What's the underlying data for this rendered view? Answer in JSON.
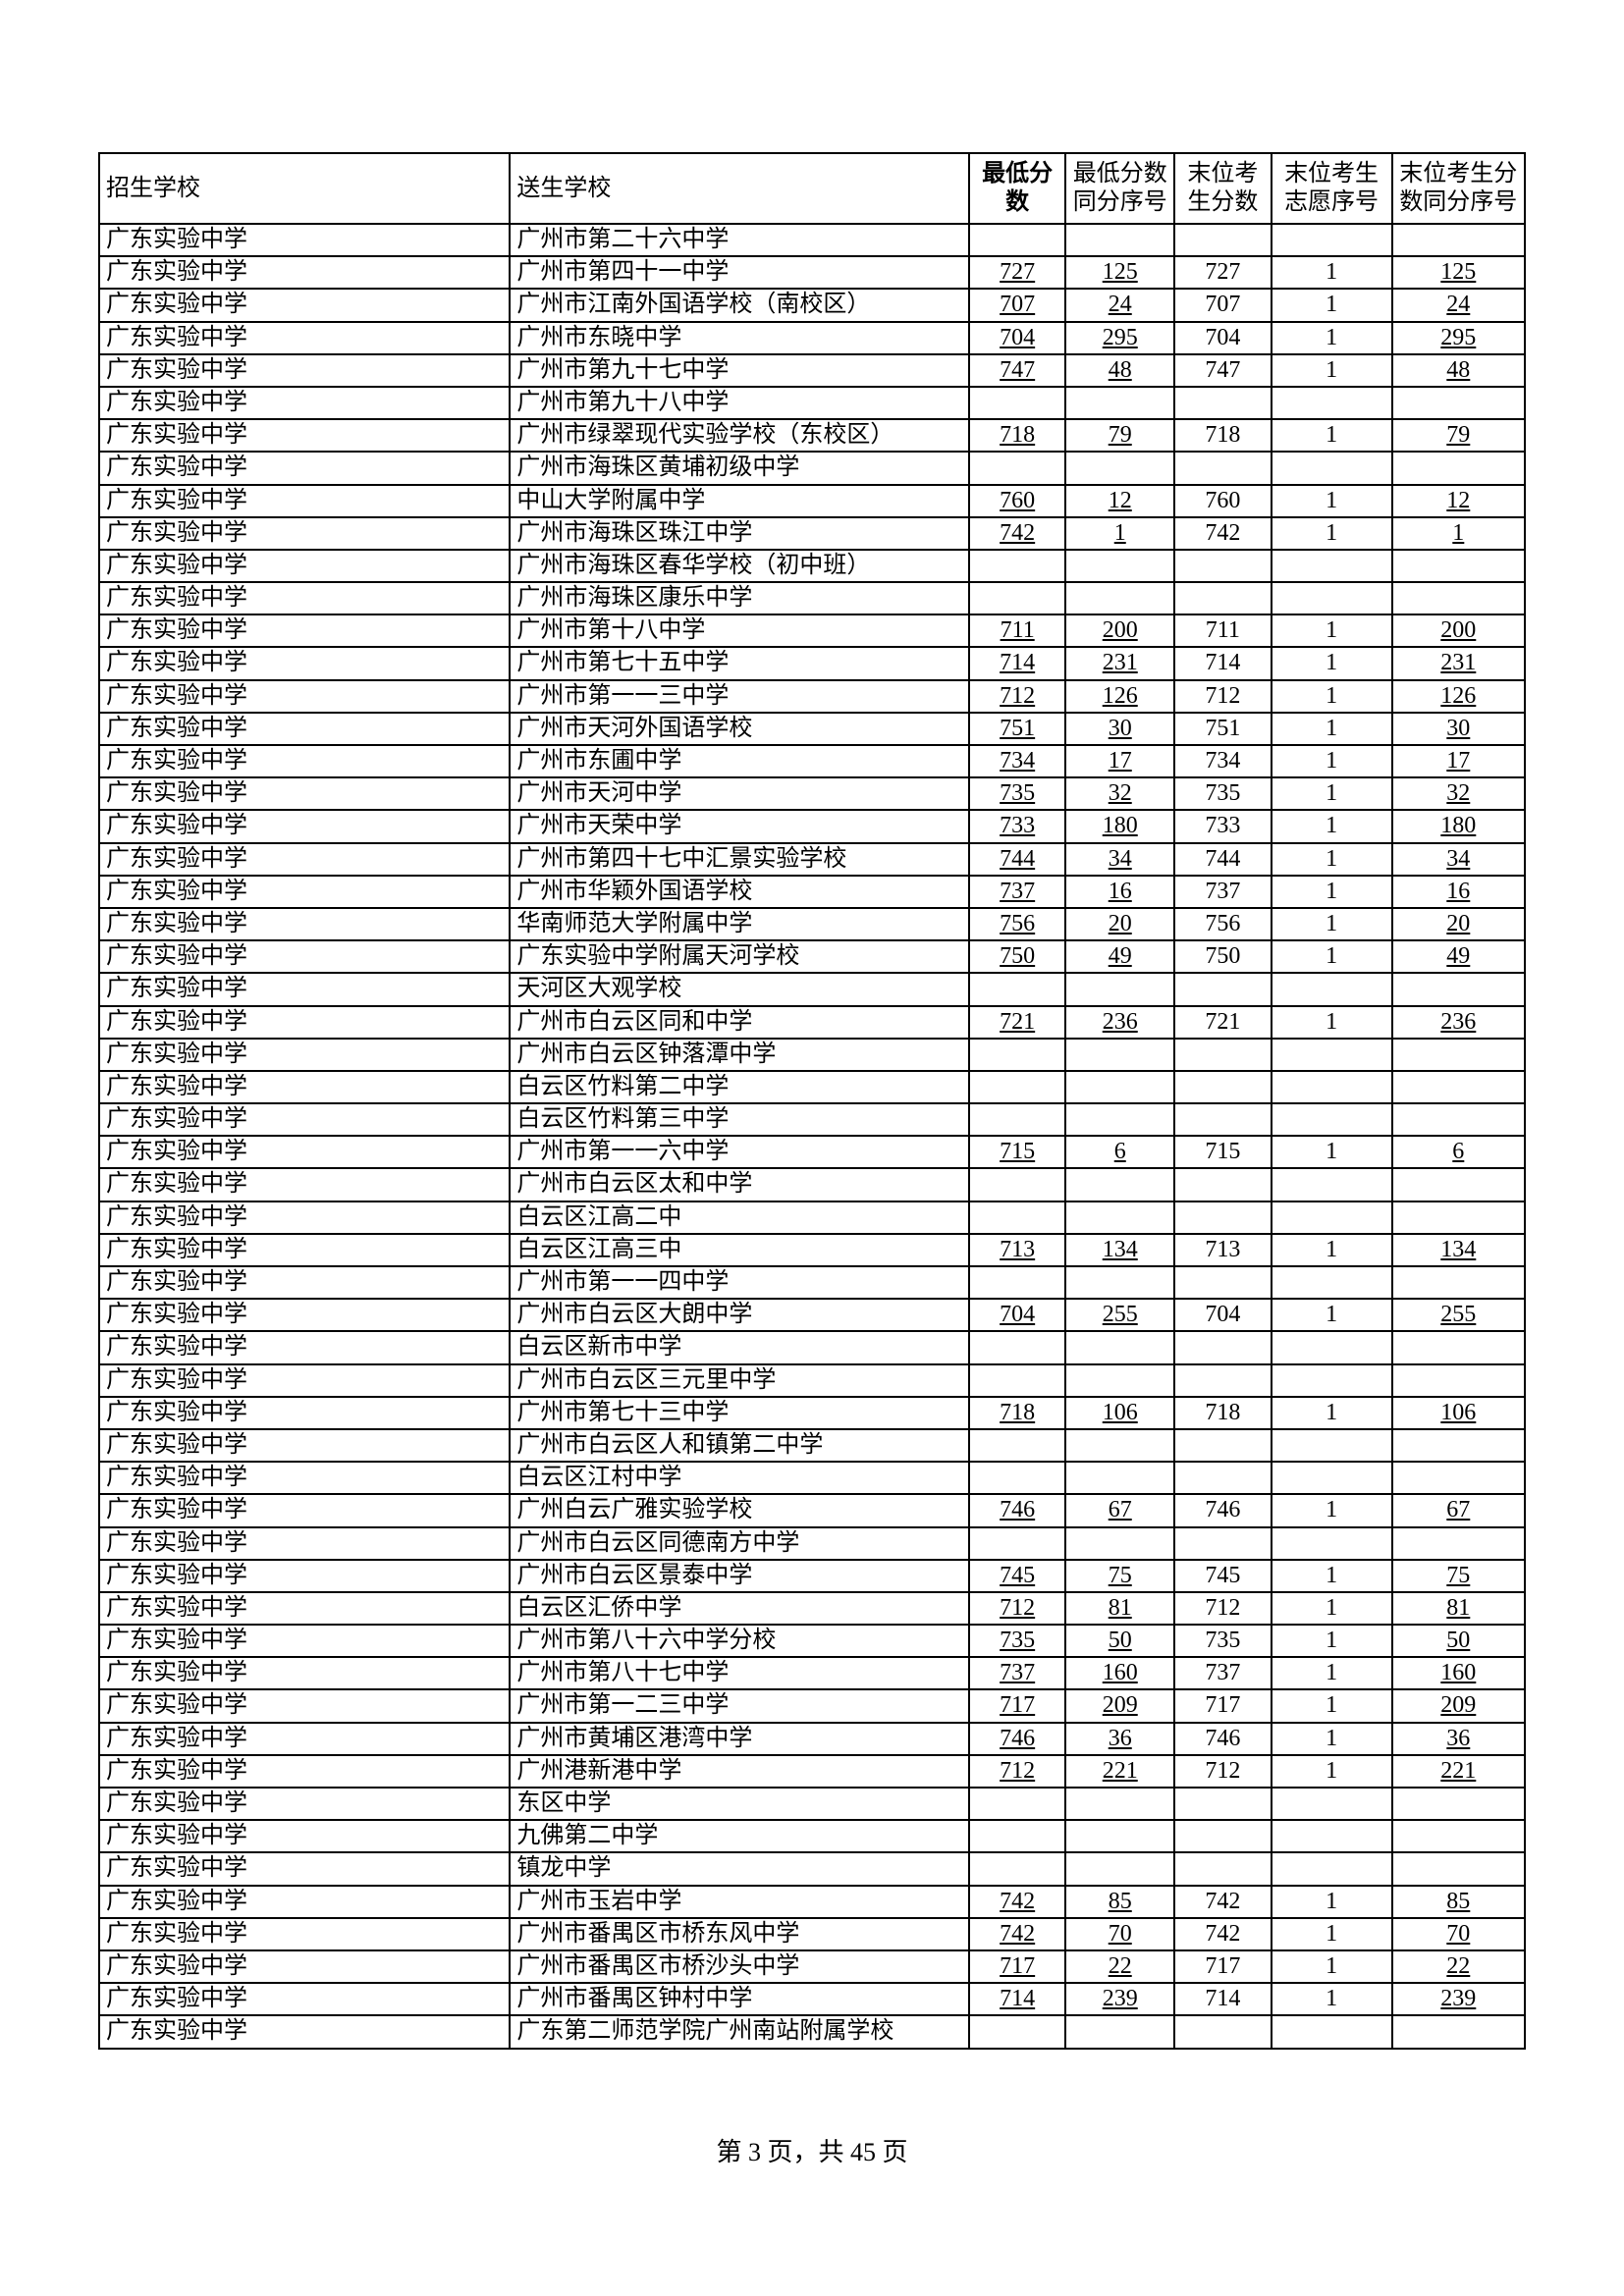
{
  "table": {
    "headers": {
      "recruit": "招生学校",
      "send": "送生学校",
      "min": "最低分数",
      "n1": "最低分数同分序号",
      "n2": "末位考生分数",
      "n3": "末位考生志愿序号",
      "n4": "末位考生分数同分序号"
    },
    "rows": [
      {
        "r": "广东实验中学",
        "s": "广州市第二十六中学",
        "m": "",
        "a": "",
        "b": "",
        "c": "",
        "d": ""
      },
      {
        "r": "广东实验中学",
        "s": "广州市第四十一中学",
        "m": "727",
        "a": "125",
        "b": "727",
        "c": "1",
        "d": "125"
      },
      {
        "r": "广东实验中学",
        "s": "广州市江南外国语学校（南校区）",
        "m": "707",
        "a": "24",
        "b": "707",
        "c": "1",
        "d": "24"
      },
      {
        "r": "广东实验中学",
        "s": "广州市东晓中学",
        "m": "704",
        "a": "295",
        "b": "704",
        "c": "1",
        "d": "295"
      },
      {
        "r": "广东实验中学",
        "s": "广州市第九十七中学",
        "m": "747",
        "a": "48",
        "b": "747",
        "c": "1",
        "d": "48"
      },
      {
        "r": "广东实验中学",
        "s": "广州市第九十八中学",
        "m": "",
        "a": "",
        "b": "",
        "c": "",
        "d": ""
      },
      {
        "r": "广东实验中学",
        "s": "广州市绿翠现代实验学校（东校区）",
        "m": "718",
        "a": "79",
        "b": "718",
        "c": "1",
        "d": "79"
      },
      {
        "r": "广东实验中学",
        "s": "广州市海珠区黄埔初级中学",
        "m": "",
        "a": "",
        "b": "",
        "c": "",
        "d": ""
      },
      {
        "r": "广东实验中学",
        "s": "中山大学附属中学",
        "m": "760",
        "a": "12",
        "b": "760",
        "c": "1",
        "d": "12"
      },
      {
        "r": "广东实验中学",
        "s": "广州市海珠区珠江中学",
        "m": "742",
        "a": "1",
        "b": "742",
        "c": "1",
        "d": "1"
      },
      {
        "r": "广东实验中学",
        "s": "广州市海珠区春华学校（初中班）",
        "m": "",
        "a": "",
        "b": "",
        "c": "",
        "d": ""
      },
      {
        "r": "广东实验中学",
        "s": "广州市海珠区康乐中学",
        "m": "",
        "a": "",
        "b": "",
        "c": "",
        "d": ""
      },
      {
        "r": "广东实验中学",
        "s": "广州市第十八中学",
        "m": "711",
        "a": "200",
        "b": "711",
        "c": "1",
        "d": "200"
      },
      {
        "r": "广东实验中学",
        "s": "广州市第七十五中学",
        "m": "714",
        "a": "231",
        "b": "714",
        "c": "1",
        "d": "231"
      },
      {
        "r": "广东实验中学",
        "s": "广州市第一一三中学",
        "m": "712",
        "a": "126",
        "b": "712",
        "c": "1",
        "d": "126"
      },
      {
        "r": "广东实验中学",
        "s": "广州市天河外国语学校",
        "m": "751",
        "a": "30",
        "b": "751",
        "c": "1",
        "d": "30"
      },
      {
        "r": "广东实验中学",
        "s": "广州市东圃中学",
        "m": "734",
        "a": "17",
        "b": "734",
        "c": "1",
        "d": "17"
      },
      {
        "r": "广东实验中学",
        "s": "广州市天河中学",
        "m": "735",
        "a": "32",
        "b": "735",
        "c": "1",
        "d": "32"
      },
      {
        "r": "广东实验中学",
        "s": "广州市天荣中学",
        "m": "733",
        "a": "180",
        "b": "733",
        "c": "1",
        "d": "180"
      },
      {
        "r": "广东实验中学",
        "s": "广州市第四十七中汇景实验学校",
        "m": "744",
        "a": "34",
        "b": "744",
        "c": "1",
        "d": "34"
      },
      {
        "r": "广东实验中学",
        "s": "广州市华颖外国语学校",
        "m": "737",
        "a": "16",
        "b": "737",
        "c": "1",
        "d": "16"
      },
      {
        "r": "广东实验中学",
        "s": "华南师范大学附属中学",
        "m": "756",
        "a": "20",
        "b": "756",
        "c": "1",
        "d": "20"
      },
      {
        "r": "广东实验中学",
        "s": "广东实验中学附属天河学校",
        "m": "750",
        "a": "49",
        "b": "750",
        "c": "1",
        "d": "49"
      },
      {
        "r": "广东实验中学",
        "s": "天河区大观学校",
        "m": "",
        "a": "",
        "b": "",
        "c": "",
        "d": ""
      },
      {
        "r": "广东实验中学",
        "s": "广州市白云区同和中学",
        "m": "721",
        "a": "236",
        "b": "721",
        "c": "1",
        "d": "236"
      },
      {
        "r": "广东实验中学",
        "s": "广州市白云区钟落潭中学",
        "m": "",
        "a": "",
        "b": "",
        "c": "",
        "d": ""
      },
      {
        "r": "广东实验中学",
        "s": "白云区竹料第二中学",
        "m": "",
        "a": "",
        "b": "",
        "c": "",
        "d": ""
      },
      {
        "r": "广东实验中学",
        "s": "白云区竹料第三中学",
        "m": "",
        "a": "",
        "b": "",
        "c": "",
        "d": ""
      },
      {
        "r": "广东实验中学",
        "s": "广州市第一一六中学",
        "m": "715",
        "a": "6",
        "b": "715",
        "c": "1",
        "d": "6"
      },
      {
        "r": "广东实验中学",
        "s": "广州市白云区太和中学",
        "m": "",
        "a": "",
        "b": "",
        "c": "",
        "d": ""
      },
      {
        "r": "广东实验中学",
        "s": "白云区江高二中",
        "m": "",
        "a": "",
        "b": "",
        "c": "",
        "d": ""
      },
      {
        "r": "广东实验中学",
        "s": "白云区江高三中",
        "m": "713",
        "a": "134",
        "b": "713",
        "c": "1",
        "d": "134"
      },
      {
        "r": "广东实验中学",
        "s": "广州市第一一四中学",
        "m": "",
        "a": "",
        "b": "",
        "c": "",
        "d": ""
      },
      {
        "r": "广东实验中学",
        "s": "广州市白云区大朗中学",
        "m": "704",
        "a": "255",
        "b": "704",
        "c": "1",
        "d": "255"
      },
      {
        "r": "广东实验中学",
        "s": "白云区新市中学",
        "m": "",
        "a": "",
        "b": "",
        "c": "",
        "d": ""
      },
      {
        "r": "广东实验中学",
        "s": "广州市白云区三元里中学",
        "m": "",
        "a": "",
        "b": "",
        "c": "",
        "d": ""
      },
      {
        "r": "广东实验中学",
        "s": "广州市第七十三中学",
        "m": "718",
        "a": "106",
        "b": "718",
        "c": "1",
        "d": "106"
      },
      {
        "r": "广东实验中学",
        "s": "广州市白云区人和镇第二中学",
        "m": "",
        "a": "",
        "b": "",
        "c": "",
        "d": ""
      },
      {
        "r": "广东实验中学",
        "s": "白云区江村中学",
        "m": "",
        "a": "",
        "b": "",
        "c": "",
        "d": ""
      },
      {
        "r": "广东实验中学",
        "s": "广州白云广雅实验学校",
        "m": "746",
        "a": "67",
        "b": "746",
        "c": "1",
        "d": "67"
      },
      {
        "r": "广东实验中学",
        "s": "广州市白云区同德南方中学",
        "m": "",
        "a": "",
        "b": "",
        "c": "",
        "d": ""
      },
      {
        "r": "广东实验中学",
        "s": "广州市白云区景泰中学",
        "m": "745",
        "a": "75",
        "b": "745",
        "c": "1",
        "d": "75"
      },
      {
        "r": "广东实验中学",
        "s": "白云区汇侨中学",
        "m": "712",
        "a": "81",
        "b": "712",
        "c": "1",
        "d": "81"
      },
      {
        "r": "广东实验中学",
        "s": "广州市第八十六中学分校",
        "m": "735",
        "a": "50",
        "b": "735",
        "c": "1",
        "d": "50"
      },
      {
        "r": "广东实验中学",
        "s": "广州市第八十七中学",
        "m": "737",
        "a": "160",
        "b": "737",
        "c": "1",
        "d": "160"
      },
      {
        "r": "广东实验中学",
        "s": "广州市第一二三中学",
        "m": "717",
        "a": "209",
        "b": "717",
        "c": "1",
        "d": "209"
      },
      {
        "r": "广东实验中学",
        "s": "广州市黄埔区港湾中学",
        "m": "746",
        "a": "36",
        "b": "746",
        "c": "1",
        "d": "36"
      },
      {
        "r": "广东实验中学",
        "s": "广州港新港中学",
        "m": "712",
        "a": "221",
        "b": "712",
        "c": "1",
        "d": "221"
      },
      {
        "r": "广东实验中学",
        "s": "东区中学",
        "m": "",
        "a": "",
        "b": "",
        "c": "",
        "d": ""
      },
      {
        "r": "广东实验中学",
        "s": "九佛第二中学",
        "m": "",
        "a": "",
        "b": "",
        "c": "",
        "d": ""
      },
      {
        "r": "广东实验中学",
        "s": "镇龙中学",
        "m": "",
        "a": "",
        "b": "",
        "c": "",
        "d": ""
      },
      {
        "r": "广东实验中学",
        "s": "广州市玉岩中学",
        "m": "742",
        "a": "85",
        "b": "742",
        "c": "1",
        "d": "85"
      },
      {
        "r": "广东实验中学",
        "s": "广州市番禺区市桥东风中学",
        "m": "742",
        "a": "70",
        "b": "742",
        "c": "1",
        "d": "70"
      },
      {
        "r": "广东实验中学",
        "s": "广州市番禺区市桥沙头中学",
        "m": "717",
        "a": "22",
        "b": "717",
        "c": "1",
        "d": "22"
      },
      {
        "r": "广东实验中学",
        "s": "广州市番禺区钟村中学",
        "m": "714",
        "a": "239",
        "b": "714",
        "c": "1",
        "d": "239"
      },
      {
        "r": "广东实验中学",
        "s": "广东第二师范学院广州南站附属学校",
        "m": "",
        "a": "",
        "b": "",
        "c": "",
        "d": ""
      }
    ]
  },
  "footer": {
    "page_prefix": "第 ",
    "page_current": "3",
    "page_mid": " 页，共 ",
    "page_total": "45",
    "page_suffix": " 页"
  }
}
